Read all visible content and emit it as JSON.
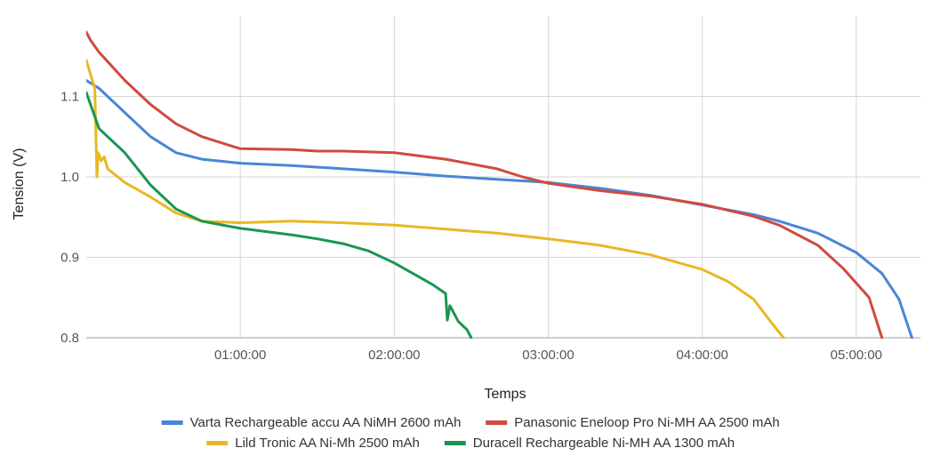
{
  "chart_data": {
    "type": "line",
    "xlabel": "Temps",
    "ylabel": "Tension (V)",
    "xlim": [
      0,
      19500
    ],
    "ylim": [
      0.8,
      1.2
    ],
    "x_ticks": [
      {
        "value": 3600,
        "label": "01:00:00"
      },
      {
        "value": 7200,
        "label": "02:00:00"
      },
      {
        "value": 10800,
        "label": "03:00:00"
      },
      {
        "value": 14400,
        "label": "04:00:00"
      },
      {
        "value": 18000,
        "label": "05:00:00"
      }
    ],
    "y_ticks": [
      {
        "value": 0.8,
        "label": "0.8"
      },
      {
        "value": 0.9,
        "label": "0.9"
      },
      {
        "value": 1.0,
        "label": "1.0"
      },
      {
        "value": 1.1,
        "label": "1.1"
      }
    ],
    "grid": true,
    "legend_position": "bottom",
    "series": [
      {
        "name": "Varta Rechargeable accu AA NiMH 2600 mAh",
        "color": "#4a86d6",
        "points": [
          [
            0,
            1.12
          ],
          [
            300,
            1.11
          ],
          [
            900,
            1.08
          ],
          [
            1500,
            1.05
          ],
          [
            2100,
            1.03
          ],
          [
            2700,
            1.022
          ],
          [
            3600,
            1.017
          ],
          [
            4800,
            1.014
          ],
          [
            6000,
            1.01
          ],
          [
            7200,
            1.006
          ],
          [
            8400,
            1.001
          ],
          [
            9600,
            0.997
          ],
          [
            10800,
            0.993
          ],
          [
            12000,
            0.986
          ],
          [
            13200,
            0.977
          ],
          [
            14400,
            0.965
          ],
          [
            15600,
            0.953
          ],
          [
            16200,
            0.945
          ],
          [
            17100,
            0.93
          ],
          [
            18000,
            0.906
          ],
          [
            18600,
            0.88
          ],
          [
            19000,
            0.848
          ],
          [
            19300,
            0.8
          ]
        ]
      },
      {
        "name": "Panasonic Eneloop Pro Ni-MH AA 2500 mAh",
        "color": "#d04a3f",
        "points": [
          [
            0,
            1.18
          ],
          [
            100,
            1.17
          ],
          [
            300,
            1.155
          ],
          [
            900,
            1.12
          ],
          [
            1500,
            1.09
          ],
          [
            2100,
            1.066
          ],
          [
            2700,
            1.05
          ],
          [
            3300,
            1.04
          ],
          [
            3600,
            1.035
          ],
          [
            4800,
            1.034
          ],
          [
            5400,
            1.032
          ],
          [
            6000,
            1.032
          ],
          [
            7200,
            1.03
          ],
          [
            8400,
            1.022
          ],
          [
            9600,
            1.01
          ],
          [
            10200,
            1.0
          ],
          [
            10800,
            0.992
          ],
          [
            12000,
            0.983
          ],
          [
            13200,
            0.976
          ],
          [
            14400,
            0.966
          ],
          [
            15600,
            0.951
          ],
          [
            16200,
            0.94
          ],
          [
            17100,
            0.915
          ],
          [
            17700,
            0.886
          ],
          [
            18300,
            0.85
          ],
          [
            18600,
            0.8
          ]
        ]
      },
      {
        "name": "Lild Tronic AA Ni-Mh 2500 mAh",
        "color": "#e8b824",
        "points": [
          [
            0,
            1.145
          ],
          [
            200,
            1.11
          ],
          [
            250,
            1.0
          ],
          [
            280,
            1.03
          ],
          [
            350,
            1.02
          ],
          [
            420,
            1.025
          ],
          [
            500,
            1.01
          ],
          [
            900,
            0.993
          ],
          [
            1500,
            0.975
          ],
          [
            2100,
            0.955
          ],
          [
            2700,
            0.945
          ],
          [
            3600,
            0.943
          ],
          [
            4800,
            0.945
          ],
          [
            6000,
            0.943
          ],
          [
            7200,
            0.94
          ],
          [
            8400,
            0.935
          ],
          [
            9600,
            0.93
          ],
          [
            10800,
            0.923
          ],
          [
            12000,
            0.915
          ],
          [
            13200,
            0.903
          ],
          [
            14400,
            0.885
          ],
          [
            15000,
            0.87
          ],
          [
            15600,
            0.848
          ],
          [
            16000,
            0.82
          ],
          [
            16300,
            0.8
          ]
        ]
      },
      {
        "name": "Duracell Rechargeable Ni-MH AA 1300 mAh",
        "color": "#1a9650",
        "points": [
          [
            0,
            1.105
          ],
          [
            300,
            1.06
          ],
          [
            900,
            1.03
          ],
          [
            1500,
            0.99
          ],
          [
            2100,
            0.96
          ],
          [
            2700,
            0.945
          ],
          [
            3600,
            0.936
          ],
          [
            4200,
            0.932
          ],
          [
            4800,
            0.928
          ],
          [
            5400,
            0.923
          ],
          [
            6000,
            0.917
          ],
          [
            6600,
            0.908
          ],
          [
            7200,
            0.893
          ],
          [
            7800,
            0.875
          ],
          [
            8100,
            0.866
          ],
          [
            8400,
            0.855
          ],
          [
            8440,
            0.822
          ],
          [
            8500,
            0.84
          ],
          [
            8700,
            0.82
          ],
          [
            8900,
            0.81
          ],
          [
            9000,
            0.8
          ]
        ]
      }
    ]
  }
}
